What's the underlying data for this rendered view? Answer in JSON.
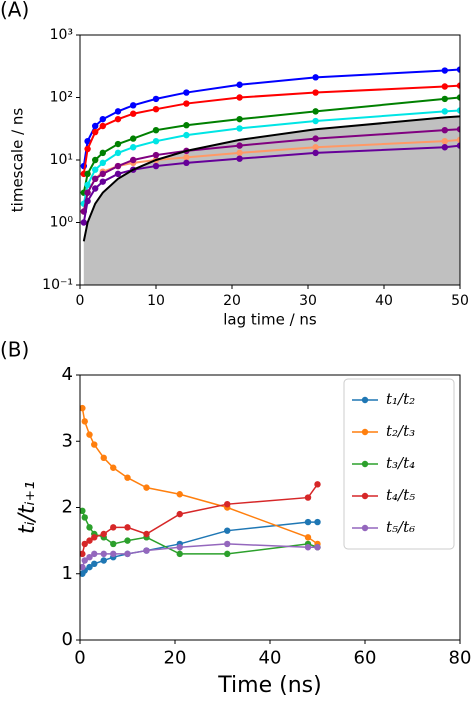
{
  "chart_data": [
    {
      "type": "line",
      "label": "(A)",
      "xlabel": "lag time / ns",
      "ylabel": "timescale / ns",
      "log_y": true,
      "x": [
        0.5,
        1,
        2,
        3,
        5,
        7,
        10,
        14,
        21,
        31,
        48,
        50
      ],
      "xlim": [
        0,
        50
      ],
      "xticks": [
        0,
        10,
        20,
        30,
        40,
        50
      ],
      "ylim": [
        0.1,
        1000
      ],
      "yticks": [
        {
          "value": 0.1,
          "label": "10⁻¹"
        },
        {
          "value": 1,
          "label": "10⁰"
        },
        {
          "value": 10,
          "label": "10¹"
        },
        {
          "value": 100,
          "label": "10²"
        },
        {
          "value": 1000,
          "label": "10³"
        }
      ],
      "fill_color": "#c0c0c0",
      "series": [
        {
          "color": "#0000ff",
          "values": [
            8,
            20,
            35,
            45,
            60,
            75,
            95,
            120,
            160,
            210,
            270,
            280
          ]
        },
        {
          "color": "#ff0000",
          "values": [
            6,
            15,
            28,
            35,
            45,
            55,
            65,
            80,
            100,
            120,
            150,
            155
          ]
        },
        {
          "color": "#008000",
          "values": [
            3,
            6,
            10,
            13,
            18,
            22,
            30,
            36,
            45,
            60,
            95,
            100
          ]
        },
        {
          "color": "#00e5e5",
          "values": [
            2,
            4,
            7,
            9,
            13,
            16,
            20,
            25,
            32,
            42,
            60,
            62
          ]
        },
        {
          "color": "#ff9966",
          "values": [
            1.5,
            3,
            5,
            6.5,
            8,
            9,
            10,
            11,
            13,
            16,
            20,
            21
          ]
        },
        {
          "color": "#800080",
          "values": [
            1.5,
            3,
            5,
            6,
            8,
            10,
            12,
            14,
            17,
            22,
            30,
            31
          ]
        },
        {
          "color": "#660099",
          "values": [
            1,
            2.2,
            3.5,
            4.5,
            6,
            7,
            8,
            9,
            10.5,
            13,
            16,
            17
          ]
        },
        {
          "color": "#000000",
          "markers": false,
          "fill": true,
          "values": [
            0.5,
            1,
            2,
            3,
            5,
            7,
            10,
            14,
            21,
            31,
            48,
            50
          ]
        }
      ]
    },
    {
      "type": "line",
      "label": "(B)",
      "xlabel": "Time (ns)",
      "ylabel": "tᵢ/tᵢ₊₁",
      "x": [
        0.5,
        1,
        2,
        3,
        5,
        7,
        10,
        14,
        21,
        31,
        48,
        50
      ],
      "xlim": [
        0,
        80
      ],
      "xticks": [
        0,
        20,
        40,
        60,
        80
      ],
      "ylim": [
        0,
        4
      ],
      "yticks": [
        0,
        1,
        2,
        3,
        4
      ],
      "legend": "upper right",
      "series": [
        {
          "name": "t₁/t₂",
          "color": "#1f77b4",
          "values": [
            1.0,
            1.05,
            1.1,
            1.15,
            1.2,
            1.25,
            1.3,
            1.35,
            1.45,
            1.65,
            1.78,
            1.78
          ]
        },
        {
          "name": "t₂/t₃",
          "color": "#ff7f0e",
          "values": [
            3.5,
            3.3,
            3.1,
            2.95,
            2.75,
            2.6,
            2.45,
            2.3,
            2.2,
            2.0,
            1.55,
            1.45
          ]
        },
        {
          "name": "t₃/t₄",
          "color": "#2ca02c",
          "values": [
            1.95,
            1.85,
            1.7,
            1.6,
            1.55,
            1.45,
            1.5,
            1.55,
            1.3,
            1.3,
            1.45,
            1.4
          ]
        },
        {
          "name": "t₄/t₅",
          "color": "#d62728",
          "values": [
            1.3,
            1.45,
            1.5,
            1.55,
            1.6,
            1.7,
            1.7,
            1.6,
            1.9,
            2.05,
            2.15,
            2.35
          ]
        },
        {
          "name": "t₅/t₆",
          "color": "#9467bd",
          "values": [
            1.1,
            1.2,
            1.25,
            1.3,
            1.3,
            1.3,
            1.3,
            1.35,
            1.4,
            1.45,
            1.4,
            1.4
          ]
        }
      ]
    }
  ]
}
